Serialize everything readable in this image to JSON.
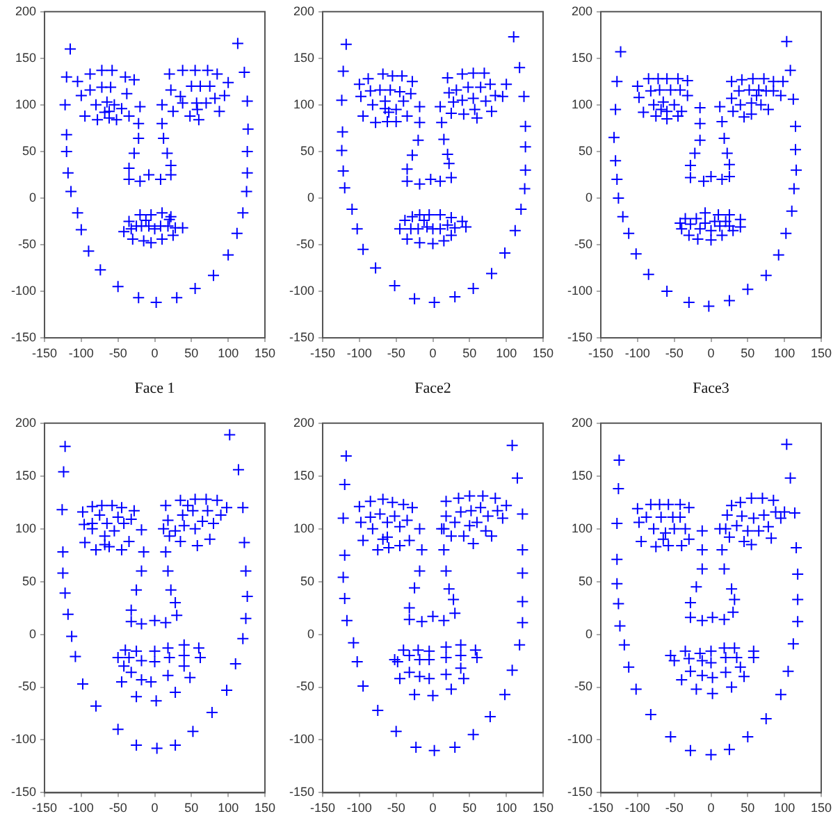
{
  "chart_data": [
    {
      "type": "scatter",
      "xlabel": "Face 1",
      "marker": "cross",
      "grid": false,
      "legend": false,
      "xlim": [
        -150,
        150
      ],
      "ylim": [
        -150,
        200
      ],
      "xticks": [
        -150,
        -100,
        -50,
        0,
        50,
        100,
        150
      ],
      "yticks": [
        -150,
        -100,
        -50,
        0,
        50,
        100,
        150,
        200
      ],
      "series": [
        {
          "color": "#0000ff",
          "x": [
            -115,
            -120,
            -122,
            -120,
            -120,
            -118,
            -114,
            -105,
            -100,
            -90,
            -74,
            -50,
            -22,
            2,
            30,
            55,
            80,
            100,
            112,
            120,
            125,
            126,
            126,
            127,
            126,
            122,
            113,
            -105,
            -100,
            -95,
            -88,
            -88,
            -80,
            -78,
            -72,
            -72,
            -65,
            -62,
            -60,
            -58,
            -55,
            -52,
            -45,
            -40,
            -38,
            -35,
            -28,
            -68,
            -62,
            20,
            22,
            25,
            35,
            38,
            38,
            48,
            50,
            55,
            57,
            58,
            60,
            62,
            72,
            70,
            75,
            85,
            82,
            88,
            95,
            100,
            -20,
            -22,
            -22,
            -28,
            -35,
            -35,
            -20,
            -8,
            8,
            22,
            22,
            17,
            12,
            10,
            10,
            -42,
            -35,
            -32,
            -30,
            -25,
            -20,
            -18,
            -15,
            -8,
            -5,
            -5,
            0,
            8,
            10,
            10,
            18,
            22,
            25,
            28,
            38,
            -12,
            20
          ],
          "values": [
            160,
            130,
            100,
            68,
            50,
            27,
            7,
            -16,
            -34,
            -57,
            -77,
            -95,
            -107,
            -112,
            -107,
            -97,
            -83,
            -61,
            -38,
            -16,
            7,
            27,
            50,
            74,
            104,
            135,
            166,
            125,
            110,
            88,
            116,
            133,
            100,
            84,
            137,
            119,
            103,
            93,
            119,
            137,
            100,
            84,
            96,
            130,
            112,
            88,
            127,
            92,
            86,
            133,
            116,
            93,
            109,
            137,
            102,
            88,
            120,
            137,
            102,
            95,
            84,
            120,
            137,
            102,
            120,
            133,
            107,
            93,
            110,
            124,
            98,
            80,
            64,
            48,
            32,
            20,
            18,
            25,
            20,
            25,
            35,
            48,
            64,
            80,
            100,
            -36,
            -25,
            -33,
            -44,
            -30,
            -18,
            -30,
            -46,
            -30,
            -18,
            -48,
            -33,
            -30,
            -16,
            -44,
            -30,
            -20,
            -40,
            -32,
            -32,
            -24,
            -23
          ]
        }
      ]
    },
    {
      "type": "scatter",
      "xlabel": "Face2",
      "marker": "cross",
      "grid": false,
      "legend": false,
      "xlim": [
        -150,
        150
      ],
      "ylim": [
        -150,
        200
      ],
      "xticks": [
        -150,
        -100,
        -50,
        0,
        50,
        100,
        150
      ],
      "yticks": [
        -150,
        -100,
        -50,
        0,
        50,
        100,
        150,
        200
      ],
      "series": [
        {
          "color": "#0000ff",
          "x": [
            -118,
            -122,
            -124,
            -123,
            -124,
            -122,
            -120,
            -110,
            -103,
            -95,
            -78,
            -52,
            -25,
            2,
            30,
            55,
            80,
            98,
            112,
            120,
            125,
            126,
            126,
            126,
            124,
            118,
            110,
            -100,
            -98,
            -95,
            -88,
            -85,
            -82,
            -78,
            -72,
            -68,
            -65,
            -60,
            -58,
            -55,
            -50,
            -50,
            -45,
            -42,
            -40,
            -35,
            -30,
            -28,
            -62,
            -65,
            20,
            22,
            25,
            28,
            32,
            40,
            40,
            42,
            48,
            55,
            55,
            57,
            60,
            65,
            70,
            72,
            78,
            80,
            85,
            95,
            100,
            -18,
            -18,
            -20,
            -28,
            -35,
            -35,
            -18,
            -3,
            10,
            25,
            22,
            20,
            15,
            12,
            10,
            -45,
            -38,
            -35,
            -30,
            -28,
            -20,
            -18,
            -18,
            -8,
            -5,
            0,
            0,
            10,
            10,
            15,
            20,
            25,
            25,
            30,
            40,
            45,
            -12
          ],
          "values": [
            165,
            136,
            105,
            71,
            51,
            29,
            11,
            -12,
            -33,
            -55,
            -75,
            -94,
            -108,
            -112,
            -106,
            -97,
            -81,
            -59,
            -35,
            -12,
            10,
            30,
            55,
            77,
            109,
            140,
            173,
            122,
            109,
            88,
            128,
            115,
            100,
            81,
            116,
            133,
            104,
            92,
            116,
            131,
            95,
            82,
            114,
            131,
            104,
            88,
            112,
            125,
            82,
            96,
            129,
            113,
            91,
            103,
            116,
            133,
            105,
            90,
            119,
            134,
            107,
            95,
            86,
            119,
            134,
            104,
            122,
            93,
            110,
            109,
            122,
            98,
            81,
            62,
            46,
            31,
            18,
            15,
            20,
            18,
            22,
            37,
            47,
            63,
            81,
            98,
            -33,
            -24,
            -44,
            -33,
            -20,
            -33,
            -18,
            -48,
            -31,
            -18,
            -49,
            -33,
            -18,
            -33,
            -46,
            -29,
            -21,
            -40,
            -32,
            -25,
            -31,
            -24
          ]
        }
      ]
    },
    {
      "type": "scatter",
      "xlabel": "Face3",
      "marker": "cross",
      "grid": false,
      "legend": false,
      "xlim": [
        -150,
        150
      ],
      "ylim": [
        -150,
        200
      ],
      "xticks": [
        -150,
        -100,
        -50,
        0,
        50,
        100,
        150
      ],
      "yticks": [
        -150,
        -100,
        -50,
        0,
        50,
        100,
        150,
        200
      ],
      "series": [
        {
          "color": "#0000ff",
          "x": [
            -123,
            -128,
            -130,
            -132,
            -130,
            -128,
            -126,
            -120,
            -112,
            -102,
            -85,
            -60,
            -30,
            -3,
            25,
            50,
            75,
            92,
            102,
            110,
            113,
            116,
            115,
            115,
            112,
            108,
            103,
            -100,
            -98,
            -92,
            -85,
            -82,
            -78,
            -75,
            -72,
            -70,
            -65,
            -60,
            -60,
            -55,
            -50,
            -45,
            -45,
            -42,
            -40,
            -32,
            -32,
            -60,
            -68,
            28,
            28,
            30,
            38,
            40,
            42,
            45,
            52,
            55,
            57,
            55,
            62,
            65,
            68,
            72,
            75,
            78,
            85,
            85,
            95,
            98,
            -15,
            -15,
            -15,
            -22,
            -28,
            -28,
            -10,
            0,
            15,
            25,
            25,
            22,
            18,
            15,
            12,
            -42,
            -40,
            -35,
            -30,
            -28,
            -20,
            -18,
            -15,
            -8,
            -8,
            0,
            0,
            5,
            10,
            12,
            15,
            20,
            25,
            25,
            30,
            40,
            40
          ],
          "values": [
            157,
            125,
            95,
            65,
            40,
            20,
            0,
            -20,
            -38,
            -60,
            -82,
            -100,
            -112,
            -116,
            -110,
            -98,
            -83,
            -61,
            -38,
            -14,
            10,
            30,
            52,
            77,
            106,
            137,
            168,
            120,
            108,
            92,
            128,
            115,
            100,
            88,
            128,
            116,
            103,
            93,
            128,
            116,
            100,
            88,
            128,
            116,
            93,
            126,
            110,
            85,
            95,
            125,
            107,
            93,
            115,
            100,
            127,
            87,
            116,
            102,
            128,
            90,
            110,
            116,
            100,
            128,
            115,
            95,
            125,
            115,
            110,
            125,
            97,
            80,
            62,
            48,
            35,
            22,
            18,
            23,
            20,
            23,
            36,
            48,
            64,
            82,
            98,
            -27,
            -33,
            -22,
            -40,
            -28,
            -22,
            -44,
            -33,
            -27,
            -16,
            -35,
            -45,
            -25,
            -18,
            -30,
            -40,
            -25,
            -18,
            -30,
            -35,
            -23,
            -31
          ]
        }
      ]
    },
    {
      "type": "scatter",
      "marker": "cross",
      "grid": false,
      "legend": false,
      "xlim": [
        -150,
        150
      ],
      "ylim": [
        -150,
        200
      ],
      "xticks": [
        -150,
        -100,
        -50,
        0,
        50,
        100,
        150
      ],
      "yticks": [
        -150,
        -100,
        -50,
        0,
        50,
        100,
        150,
        200
      ],
      "series": [
        {
          "color": "#0000ff",
          "x": [
            -122,
            -124,
            -126,
            -125,
            -125,
            -122,
            -118,
            -113,
            -108,
            -98,
            -80,
            -50,
            -25,
            3,
            28,
            52,
            78,
            98,
            110,
            120,
            124,
            126,
            124,
            122,
            120,
            114,
            102,
            -98,
            -96,
            -95,
            -85,
            -85,
            -80,
            -75,
            -72,
            -68,
            -65,
            -62,
            -58,
            -55,
            -50,
            -45,
            -45,
            -42,
            -35,
            -32,
            -28,
            -85,
            -68,
            15,
            18,
            20,
            28,
            35,
            35,
            38,
            40,
            45,
            52,
            55,
            55,
            58,
            65,
            70,
            72,
            75,
            80,
            85,
            90,
            98,
            -18,
            -15,
            -18,
            -25,
            -32,
            -32,
            -18,
            0,
            15,
            30,
            28,
            22,
            18,
            15,
            12,
            -50,
            -45,
            -40,
            -35,
            -32,
            -25,
            -25,
            -18,
            -18,
            -5,
            0,
            0,
            2,
            18,
            20,
            18,
            28,
            40,
            40,
            40,
            48,
            60,
            62,
            -42
          ],
          "values": [
            178,
            154,
            118,
            78,
            58,
            39,
            19,
            -2,
            -21,
            -47,
            -68,
            -90,
            -105,
            -108,
            -105,
            -92,
            -74,
            -53,
            -28,
            -4,
            15,
            36,
            60,
            87,
            120,
            156,
            189,
            116,
            104,
            87,
            121,
            105,
            80,
            113,
            122,
            93,
            105,
            83,
            122,
            98,
            111,
            120,
            80,
            105,
            88,
            109,
            117,
            100,
            85,
            122,
            108,
            93,
            98,
            88,
            127,
            113,
            103,
            122,
            117,
            128,
            100,
            84,
            107,
            128,
            117,
            90,
            105,
            127,
            113,
            120,
            99,
            78,
            60,
            42,
            23,
            12,
            10,
            13,
            11,
            18,
            30,
            42,
            60,
            78,
            100,
            -22,
            -45,
            -15,
            -22,
            -36,
            -16,
            -59,
            -25,
            -43,
            -45,
            -16,
            -26,
            -63,
            -13,
            -22,
            -39,
            -55,
            -10,
            -20,
            -30,
            -41,
            -13,
            -22,
            -30
          ]
        }
      ]
    },
    {
      "type": "scatter",
      "marker": "cross",
      "grid": false,
      "legend": false,
      "xlim": [
        -150,
        150
      ],
      "ylim": [
        -150,
        200
      ],
      "xticks": [
        -150,
        -100,
        -50,
        0,
        50,
        100,
        150
      ],
      "yticks": [
        -150,
        -100,
        -50,
        0,
        50,
        100,
        150,
        200
      ],
      "series": [
        {
          "color": "#0000ff",
          "x": [
            -118,
            -120,
            -122,
            -120,
            -122,
            -120,
            -117,
            -108,
            -103,
            -95,
            -75,
            -50,
            -23,
            2,
            30,
            55,
            78,
            98,
            108,
            118,
            122,
            122,
            122,
            122,
            122,
            115,
            108,
            -100,
            -98,
            -95,
            -85,
            -85,
            -82,
            -75,
            -72,
            -68,
            -62,
            -62,
            -55,
            -52,
            -45,
            -45,
            -40,
            -35,
            -32,
            -28,
            -60,
            -68,
            18,
            18,
            15,
            25,
            30,
            35,
            38,
            42,
            50,
            50,
            52,
            55,
            60,
            65,
            68,
            72,
            75,
            80,
            85,
            88,
            95,
            100,
            -18,
            -15,
            -18,
            -25,
            -32,
            -32,
            -15,
            0,
            15,
            30,
            28,
            22,
            18,
            15,
            12,
            -52,
            -48,
            -45,
            -40,
            -32,
            -32,
            -25,
            -20,
            -18,
            -18,
            -5,
            -5,
            -5,
            0,
            18,
            18,
            18,
            25,
            38,
            38,
            38,
            42,
            58,
            60
          ],
          "values": [
            169,
            142,
            110,
            75,
            54,
            34,
            13,
            -8,
            -26,
            -49,
            -72,
            -92,
            -107,
            -110,
            -107,
            -95,
            -78,
            -57,
            -34,
            -10,
            11,
            31,
            58,
            80,
            114,
            148,
            179,
            121,
            106,
            89,
            126,
            111,
            100,
            80,
            114,
            128,
            106,
            92,
            125,
            112,
            84,
            102,
            123,
            108,
            89,
            120,
            82,
            90,
            126,
            112,
            100,
            93,
            106,
            129,
            116,
            93,
            131,
            103,
            117,
            86,
            106,
            120,
            131,
            98,
            112,
            93,
            129,
            117,
            110,
            122,
            100,
            80,
            60,
            44,
            25,
            14,
            12,
            17,
            13,
            20,
            33,
            43,
            60,
            80,
            100,
            -24,
            -26,
            -42,
            -15,
            -20,
            -36,
            -57,
            -15,
            -24,
            -40,
            -16,
            -24,
            -42,
            -58,
            -12,
            -22,
            -38,
            -52,
            -10,
            -20,
            -32,
            -42,
            -15,
            -22
          ]
        }
      ]
    },
    {
      "type": "scatter",
      "marker": "cross",
      "grid": false,
      "legend": false,
      "xlim": [
        -150,
        150
      ],
      "ylim": [
        -150,
        200
      ],
      "xticks": [
        -150,
        -100,
        -50,
        0,
        50,
        100,
        150
      ],
      "yticks": [
        -150,
        -100,
        -50,
        0,
        50,
        100,
        150,
        200
      ],
      "series": [
        {
          "color": "#0000ff",
          "x": [
            -125,
            -126,
            -128,
            -128,
            -128,
            -126,
            -124,
            -118,
            -112,
            -102,
            -82,
            -55,
            -28,
            0,
            25,
            50,
            75,
            95,
            105,
            112,
            118,
            118,
            118,
            116,
            114,
            108,
            103,
            -100,
            -98,
            -95,
            -88,
            -82,
            -78,
            -75,
            -70,
            -68,
            -62,
            -58,
            -58,
            -52,
            -50,
            -42,
            -42,
            -40,
            -35,
            -30,
            -30,
            -65,
            20,
            22,
            25,
            28,
            35,
            40,
            42,
            45,
            50,
            55,
            55,
            58,
            65,
            70,
            72,
            78,
            82,
            85,
            88,
            95,
            100,
            -12,
            -12,
            -12,
            -20,
            -28,
            -28,
            -12,
            2,
            18,
            30,
            32,
            28,
            18,
            15,
            12,
            -55,
            -50,
            -40,
            -35,
            -30,
            -28,
            -20,
            -15,
            -12,
            -12,
            0,
            0,
            2,
            2,
            18,
            20,
            20,
            28,
            32,
            35,
            40,
            45,
            58,
            58
          ],
          "values": [
            165,
            138,
            105,
            71,
            48,
            29,
            8,
            -10,
            -31,
            -52,
            -76,
            -97,
            -110,
            -114,
            -109,
            -97,
            -80,
            -57,
            -35,
            -9,
            12,
            33,
            57,
            82,
            115,
            148,
            180,
            119,
            106,
            88,
            111,
            123,
            100,
            83,
            123,
            111,
            96,
            123,
            84,
            111,
            100,
            123,
            111,
            84,
            100,
            120,
            90,
            90,
            100,
            113,
            92,
            122,
            103,
            125,
            112,
            88,
            98,
            129,
            85,
            110,
            98,
            129,
            113,
            102,
            91,
            127,
            116,
            110,
            116,
            98,
            80,
            62,
            45,
            30,
            16,
            13,
            16,
            14,
            21,
            33,
            43,
            62,
            80,
            100,
            -20,
            -25,
            -43,
            -16,
            -23,
            -35,
            -52,
            -18,
            -25,
            -39,
            -16,
            -27,
            -41,
            -56,
            -13,
            -22,
            -36,
            -50,
            -13,
            -22,
            -31,
            -40,
            -16,
            -22
          ]
        }
      ]
    }
  ]
}
